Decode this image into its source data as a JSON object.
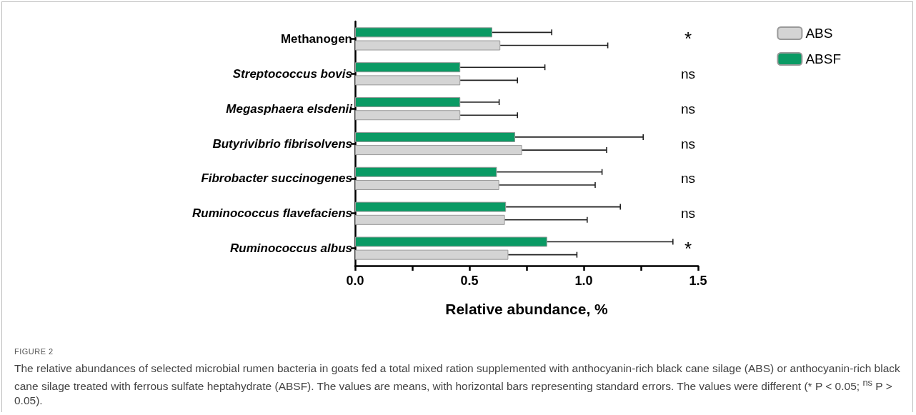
{
  "chart_data": {
    "type": "bar",
    "orientation": "horizontal",
    "xlabel": "Relative abundance, %",
    "categories": [
      "Methanogen",
      "Streptococcus bovis",
      "Megasphaera elsdenii",
      "Butyrivibrio fibrisolvens",
      "Fibrobacter succinogenes",
      "Ruminococcus flavefaciens",
      "Ruminococcus albus"
    ],
    "series": [
      {
        "name": "ABS",
        "color": "#d4d4d4",
        "values": [
          0.635,
          0.46,
          0.46,
          0.73,
          0.63,
          0.655,
          0.67
        ],
        "errors": [
          [
            0.635,
            1.105
          ],
          [
            0.46,
            0.71
          ],
          [
            0.46,
            0.71
          ],
          [
            0.73,
            1.1
          ],
          [
            0.63,
            1.05
          ],
          [
            0.655,
            1.015
          ],
          [
            0.67,
            0.97
          ]
        ]
      },
      {
        "name": "ABSF",
        "color": "#0a9a64",
        "values": [
          0.6,
          0.46,
          0.46,
          0.7,
          0.62,
          0.66,
          0.84
        ],
        "errors": [
          [
            0.6,
            0.86
          ],
          [
            0.46,
            0.83
          ],
          [
            0.46,
            0.63
          ],
          [
            0.7,
            1.26
          ],
          [
            0.62,
            1.08
          ],
          [
            0.66,
            1.16
          ],
          [
            0.84,
            1.39
          ]
        ]
      }
    ],
    "xlim": [
      0,
      1.5
    ],
    "xticks": [
      {
        "value": 0,
        "label": "0.0"
      },
      {
        "value": 0.25,
        "label": null
      },
      {
        "value": 0.5,
        "label": "0.5"
      },
      {
        "value": 0.75,
        "label": null
      },
      {
        "value": 1,
        "label": "1.0"
      },
      {
        "value": 1.25,
        "label": null
      },
      {
        "value": 1.5,
        "label": "1.5"
      }
    ],
    "grid": false,
    "legend": "top right",
    "annotations": [
      "*",
      "ns",
      "ns",
      "ns",
      "ns",
      "ns",
      "*",
      "FIGURE 2",
      "The relative abundances of selected microbial rumen bacteria in goats fed a total mixed ration supplemented with anthocyanin-rich black cane silage (ABS) or anthocyanin-rich black cane silage treated with ferrous sulfate heptahydrate (ABSF). The values are means, with horizontal bars representing standard errors. The values were different (* P < 0.05; $^{ns}$ P > 0.05)."
    ]
  }
}
